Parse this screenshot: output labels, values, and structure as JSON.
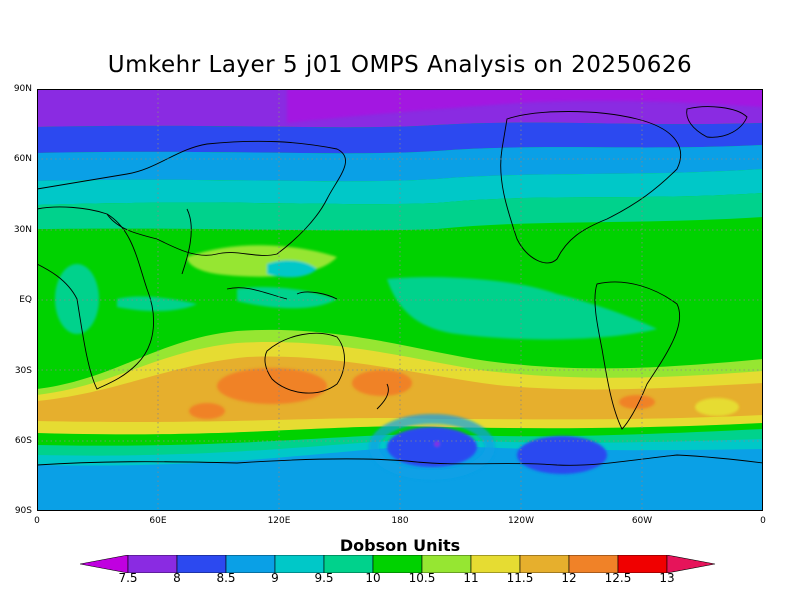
{
  "title": "Umkehr Layer 5 j01 OMPS Analysis on 20250626",
  "map": {
    "lat_labels": [
      "90N",
      "60N",
      "30N",
      "EQ",
      "30S",
      "60S",
      "90S"
    ],
    "lon_labels": [
      "0",
      "60E",
      "120E",
      "180",
      "120W",
      "60W",
      "0"
    ],
    "lat_range": [
      -90,
      90
    ],
    "lon_range": [
      0,
      360
    ],
    "projection": "cylindrical equidistant",
    "grid": "dotted",
    "basemap": "coastlines"
  },
  "chart_data": {
    "type": "heatmap",
    "title": "Umkehr Layer 5 j01 OMPS Analysis on 20250626",
    "units": "Dobson Units",
    "contour_levels": [
      7.5,
      8,
      8.5,
      9,
      9.5,
      10,
      10.5,
      11,
      11.5,
      12,
      12.5,
      13
    ],
    "colors": [
      "#c000e0",
      "#8a2be2",
      "#2c49f0",
      "#0aa0e6",
      "#00c8c8",
      "#00d28c",
      "#00d200",
      "#96e632",
      "#e6dc32",
      "#e6af2d",
      "#f08228",
      "#f00000",
      "#e6145a"
    ],
    "zonal_pattern": [
      {
        "lat": 80,
        "value_range": [
          7.5,
          8
        ]
      },
      {
        "lat": 60,
        "value_range": [
          8.5,
          9
        ]
      },
      {
        "lat": 45,
        "value_range": [
          9,
          9.5
        ]
      },
      {
        "lat": 30,
        "value_range": [
          10,
          10.5
        ]
      },
      {
        "lat": 0,
        "value_range": [
          10,
          10.5
        ]
      },
      {
        "lat": -35,
        "value_range": [
          11.5,
          12.5
        ]
      },
      {
        "lat": -50,
        "value_range": [
          11,
          12
        ]
      },
      {
        "lat": -62,
        "value_range": [
          8,
          8.5
        ]
      },
      {
        "lat": -80,
        "value_range": [
          9,
          9.5
        ]
      }
    ]
  },
  "colorbar": {
    "title": "Dobson Units",
    "labels": [
      "7.5",
      "8",
      "8.5",
      "9",
      "9.5",
      "10",
      "10.5",
      "11",
      "11.5",
      "12",
      "12.5",
      "13"
    ]
  }
}
